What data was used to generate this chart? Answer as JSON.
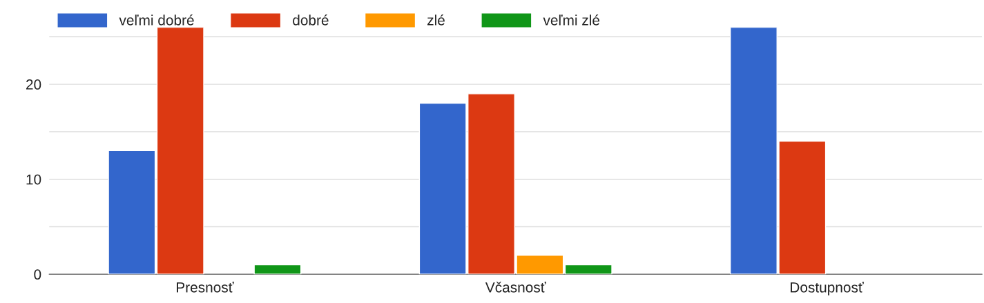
{
  "chart_data": {
    "type": "bar",
    "categories": [
      "Presnosť",
      "Včasnosť",
      "Dostupnosť"
    ],
    "series": [
      {
        "name": "veľmi dobré",
        "color": "#3366cc",
        "values": [
          13,
          18,
          26
        ]
      },
      {
        "name": "dobré",
        "color": "#dc3912",
        "values": [
          26,
          19,
          14
        ]
      },
      {
        "name": "zlé",
        "color": "#ff9900",
        "values": [
          null,
          2,
          null
        ]
      },
      {
        "name": "veľmi zlé",
        "color": "#109618",
        "values": [
          1,
          1,
          null
        ]
      }
    ],
    "ylim": [
      0,
      26
    ],
    "yticks": [
      0,
      {
        "value": 5,
        "label": null
      },
      10,
      {
        "value": 15,
        "label": null
      },
      20,
      {
        "value": 25,
        "label": null
      }
    ],
    "grid": "y",
    "legend": "top left"
  }
}
